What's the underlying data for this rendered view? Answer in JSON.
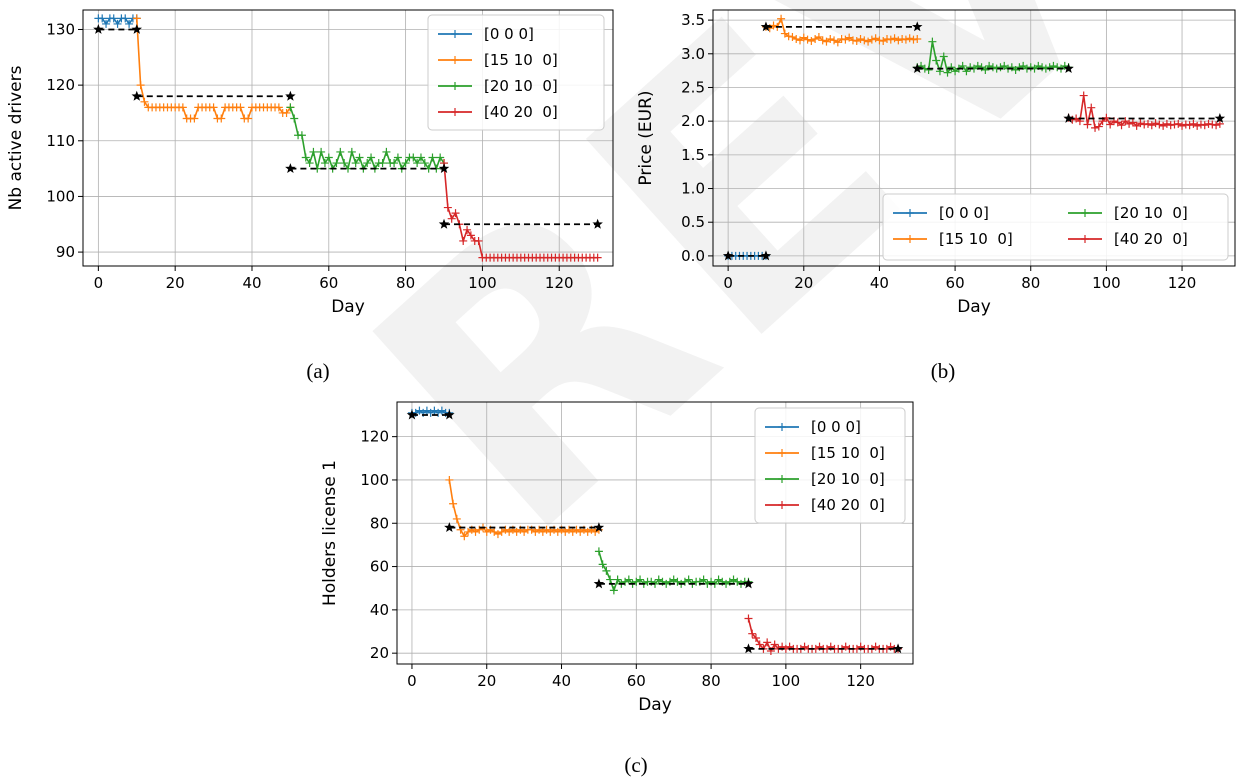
{
  "watermark": "REV",
  "colors": {
    "series": [
      "#1f77b4",
      "#ff7f0e",
      "#2ca02c",
      "#d62728"
    ],
    "target": "#000000",
    "grid": "#b0b0b0"
  },
  "chart_data": [
    {
      "id": "a",
      "caption": "(a)",
      "type": "line",
      "xlabel": "Day",
      "ylabel": "Nb active drivers",
      "xlim": [
        -4,
        134
      ],
      "ylim": [
        87.5,
        133.5
      ],
      "xticks": [
        0,
        20,
        40,
        60,
        80,
        100,
        120
      ],
      "yticks": [
        90,
        100,
        110,
        120,
        130
      ],
      "grid": true,
      "legend": {
        "placement": "upper-right",
        "columns": 1
      },
      "series": [
        {
          "name": "[0 0 0]",
          "x_start": 0,
          "x_end": 10,
          "values": [
            132,
            132,
            131,
            132,
            132,
            131,
            132,
            132,
            131,
            132,
            132
          ]
        },
        {
          "name": "[15 10  0]",
          "x_start": 10,
          "x_end": 50,
          "values": [
            132,
            120,
            117,
            116,
            116,
            116,
            116,
            116,
            116,
            116,
            116,
            116,
            116,
            114,
            114,
            114,
            116,
            116,
            116,
            116,
            116,
            114,
            114,
            116,
            116,
            116,
            116,
            116,
            114,
            114,
            116,
            116,
            116,
            116,
            116,
            116,
            116,
            116,
            115,
            115,
            116
          ]
        },
        {
          "name": "[20 10  0]",
          "x_start": 50,
          "x_end": 90,
          "values": [
            116,
            114,
            111,
            111,
            107,
            106,
            108,
            105,
            108,
            106,
            107,
            105,
            106,
            108,
            106,
            105,
            108,
            106,
            107,
            105,
            106,
            107,
            105,
            106,
            106,
            108,
            106,
            106,
            107,
            105,
            106,
            107,
            107,
            106,
            107,
            106,
            105,
            107,
            105,
            107,
            106
          ]
        },
        {
          "name": "[40 20  0]",
          "x_start": 90,
          "x_end": 130,
          "values": [
            106,
            98,
            96,
            97,
            95,
            92,
            94,
            93,
            92,
            92,
            89,
            89,
            89,
            89,
            89,
            89,
            89,
            89,
            89,
            89,
            89,
            89,
            89,
            89,
            89,
            89,
            89,
            89,
            89,
            89,
            89,
            89,
            89,
            89,
            89,
            89,
            89,
            89,
            89,
            89,
            89
          ]
        }
      ],
      "target_segments": [
        {
          "x": [
            0,
            10
          ],
          "y": [
            130,
            130
          ]
        },
        {
          "x": [
            10,
            50
          ],
          "y": [
            118,
            118
          ]
        },
        {
          "x": [
            50,
            90
          ],
          "y": [
            105,
            105
          ]
        },
        {
          "x": [
            90,
            130
          ],
          "y": [
            95,
            95
          ]
        }
      ]
    },
    {
      "id": "b",
      "caption": "(b)",
      "type": "line",
      "xlabel": "Day",
      "ylabel": "Price (EUR)",
      "xlim": [
        -4,
        134
      ],
      "ylim": [
        -0.15,
        3.65
      ],
      "xticks": [
        0,
        20,
        40,
        60,
        80,
        100,
        120
      ],
      "yticks": [
        0.0,
        0.5,
        1.0,
        1.5,
        2.0,
        2.5,
        3.0,
        3.5
      ],
      "ytick_labels": [
        "0.0",
        "0.5",
        "1.0",
        "1.5",
        "2.0",
        "2.5",
        "3.0",
        "3.5"
      ],
      "grid": true,
      "legend": {
        "placement": "lower-right",
        "columns": 2
      },
      "series": [
        {
          "name": "[0 0 0]",
          "x_start": 0,
          "x_end": 10,
          "values": [
            0,
            0,
            0,
            0,
            0,
            0,
            0,
            0,
            0,
            0,
            0
          ]
        },
        {
          "name": "[15 10  0]",
          "x_start": 10,
          "x_end": 50,
          "values": [
            3.4,
            3.38,
            3.42,
            3.4,
            3.52,
            3.3,
            3.26,
            3.25,
            3.22,
            3.2,
            3.24,
            3.21,
            3.19,
            3.22,
            3.25,
            3.2,
            3.18,
            3.22,
            3.2,
            3.17,
            3.22,
            3.21,
            3.24,
            3.2,
            3.19,
            3.22,
            3.2,
            3.18,
            3.21,
            3.23,
            3.2,
            3.19,
            3.22,
            3.21,
            3.23,
            3.2,
            3.22,
            3.21,
            3.23,
            3.21,
            3.22
          ]
        },
        {
          "name": "[20 10  0]",
          "x_start": 50,
          "x_end": 90,
          "values": [
            2.8,
            2.82,
            2.78,
            2.76,
            3.18,
            2.9,
            2.74,
            2.96,
            2.72,
            2.8,
            2.74,
            2.78,
            2.82,
            2.74,
            2.8,
            2.78,
            2.82,
            2.8,
            2.76,
            2.82,
            2.8,
            2.78,
            2.8,
            2.82,
            2.78,
            2.8,
            2.76,
            2.8,
            2.82,
            2.78,
            2.8,
            2.78,
            2.82,
            2.8,
            2.78,
            2.8,
            2.82,
            2.8,
            2.78,
            2.82,
            2.8
          ]
        },
        {
          "name": "[40 20  0]",
          "x_start": 90,
          "x_end": 130,
          "values": [
            2.05,
            2.02,
            2.04,
            2.0,
            2.38,
            1.95,
            2.2,
            1.9,
            1.92,
            2.0,
            2.05,
            1.95,
            2.0,
            1.98,
            1.94,
            2.0,
            1.96,
            1.98,
            1.93,
            1.97,
            1.95,
            1.96,
            1.94,
            1.97,
            1.95,
            1.93,
            1.96,
            1.94,
            1.95,
            1.96,
            1.93,
            1.95,
            1.94,
            1.96,
            1.93,
            1.95,
            1.94,
            1.96,
            1.95,
            1.94,
            1.96
          ]
        }
      ],
      "target_segments": [
        {
          "x": [
            0,
            10
          ],
          "y": [
            0,
            0
          ]
        },
        {
          "x": [
            10,
            50
          ],
          "y": [
            3.4,
            3.4
          ]
        },
        {
          "x": [
            50,
            90
          ],
          "y": [
            2.78,
            2.78
          ]
        },
        {
          "x": [
            90,
            130
          ],
          "y": [
            2.04,
            2.04
          ]
        }
      ]
    },
    {
      "id": "c",
      "caption": "(c)",
      "type": "line",
      "xlabel": "Day",
      "ylabel": "Holders license 1",
      "xlim": [
        -4,
        134
      ],
      "ylim": [
        15,
        136
      ],
      "xticks": [
        0,
        20,
        40,
        60,
        80,
        100,
        120
      ],
      "yticks": [
        20,
        40,
        60,
        80,
        100,
        120
      ],
      "grid": true,
      "legend": {
        "placement": "upper-right",
        "columns": 1
      },
      "series": [
        {
          "name": "[0 0 0]",
          "x_start": 0,
          "x_end": 10,
          "values": [
            131,
            131,
            132,
            131,
            132,
            131,
            132,
            131,
            132,
            131,
            131
          ]
        },
        {
          "name": "[15 10  0]",
          "x_start": 10,
          "x_end": 50,
          "values": [
            100,
            89,
            82,
            77,
            74,
            76,
            77,
            76,
            77,
            78,
            76,
            77,
            76,
            75,
            76,
            77,
            76,
            77,
            76,
            77,
            76,
            77,
            77,
            76,
            77,
            76,
            77,
            76,
            77,
            76,
            77,
            76,
            77,
            76,
            77,
            76,
            77,
            76,
            77,
            76,
            77
          ]
        },
        {
          "name": "[20 10  0]",
          "x_start": 50,
          "x_end": 90,
          "values": [
            67,
            61,
            58,
            54,
            49,
            54,
            52,
            53,
            54,
            52,
            53,
            54,
            52,
            53,
            53,
            52,
            54,
            53,
            52,
            53,
            54,
            53,
            52,
            53,
            54,
            52,
            53,
            53,
            54,
            52,
            53,
            52,
            54,
            53,
            52,
            53,
            54,
            53,
            52,
            53,
            53
          ]
        },
        {
          "name": "[40 20  0]",
          "x_start": 90,
          "x_end": 130,
          "values": [
            36,
            29,
            27,
            24,
            22,
            25,
            21,
            24,
            22,
            23,
            22,
            23,
            22,
            22,
            22,
            23,
            22,
            22,
            22,
            23,
            22,
            22,
            23,
            22,
            22,
            22,
            23,
            22,
            22,
            22,
            23,
            22,
            22,
            22,
            23,
            22,
            22,
            22,
            23,
            22,
            22
          ]
        }
      ],
      "target_segments": [
        {
          "x": [
            0,
            10
          ],
          "y": [
            130,
            130
          ]
        },
        {
          "x": [
            10,
            50
          ],
          "y": [
            78,
            78
          ]
        },
        {
          "x": [
            50,
            90
          ],
          "y": [
            52,
            52
          ]
        },
        {
          "x": [
            90,
            130
          ],
          "y": [
            22,
            22
          ]
        }
      ]
    }
  ]
}
